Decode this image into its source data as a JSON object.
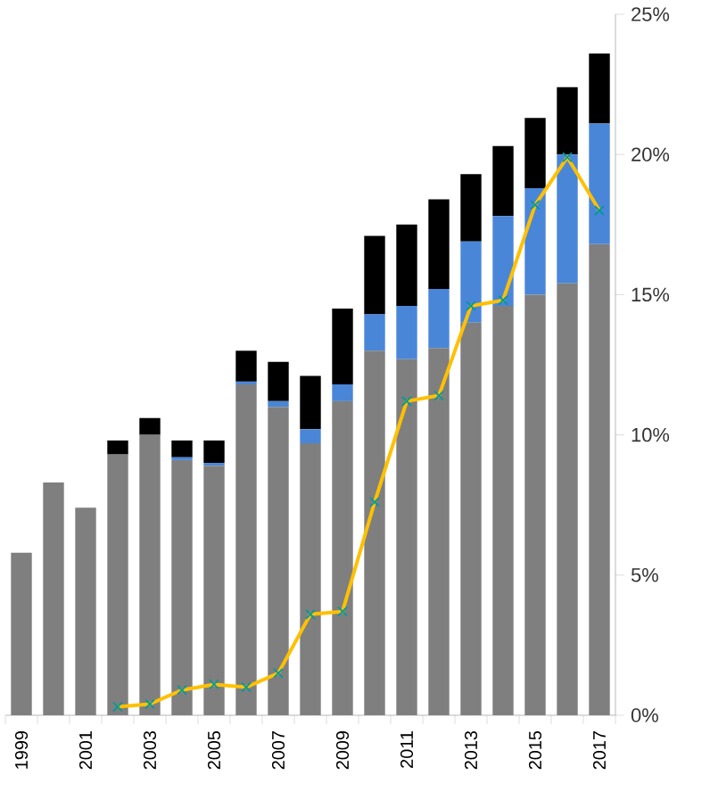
{
  "chart_data": {
    "type": "bar",
    "stacked": true,
    "categories": [
      "1999",
      null,
      "2001",
      null,
      "2003",
      null,
      "2005",
      null,
      "2007",
      null,
      "2009",
      null,
      "2011",
      null,
      "2013",
      null,
      "2015",
      null,
      "2017"
    ],
    "series": [
      {
        "color": "#7f7f7f",
        "values": [
          5.8,
          8.3,
          7.4,
          9.3,
          10.0,
          9.1,
          8.9,
          11.8,
          11.0,
          9.7,
          11.2,
          13.0,
          12.7,
          13.1,
          14.0,
          14.6,
          15.0,
          15.4,
          16.8
        ]
      },
      {
        "color": "#4a86d8",
        "values": [
          0,
          0,
          0,
          0,
          0,
          0.1,
          0.1,
          0.1,
          0.2,
          0.5,
          0.6,
          1.3,
          1.9,
          2.1,
          2.9,
          3.2,
          3.8,
          4.6,
          4.3
        ]
      },
      {
        "color": "#000000",
        "values": [
          0,
          0,
          0,
          0.5,
          0.6,
          0.6,
          0.8,
          1.1,
          1.4,
          1.9,
          2.7,
          2.8,
          2.9,
          3.2,
          2.4,
          2.5,
          2.5,
          2.4,
          2.5
        ]
      },
      {
        "type": "line",
        "color": "#ffc000",
        "marker": "cross",
        "values": [
          null,
          null,
          null,
          0.3,
          0.4,
          0.9,
          1.1,
          1.0,
          1.5,
          3.6,
          3.7,
          7.6,
          11.2,
          11.4,
          14.6,
          14.8,
          18.2,
          19.9,
          18.0
        ]
      }
    ],
    "ylim": [
      0,
      25
    ],
    "yticks": [
      {
        "value": 0,
        "label": "0%"
      },
      {
        "value": 5,
        "label": "5%"
      },
      {
        "value": 10,
        "label": "10%"
      },
      {
        "value": 15,
        "label": "15%"
      },
      {
        "value": 20,
        "label": "20%"
      },
      {
        "value": 25,
        "label": "25%"
      }
    ],
    "grid": false
  }
}
